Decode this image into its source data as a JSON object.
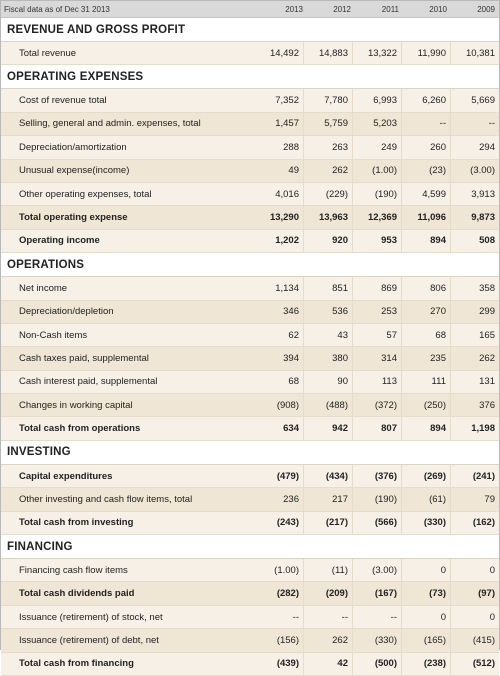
{
  "header": {
    "title": "Fiscal data as of Dec 31 2013",
    "years": [
      "2013",
      "2012",
      "2011",
      "2010",
      "2009"
    ]
  },
  "rows": [
    {
      "type": "section",
      "label": "REVENUE AND GROSS PROFIT"
    },
    {
      "type": "data",
      "label": "Total revenue",
      "values": [
        "14,492",
        "14,883",
        "13,322",
        "11,990",
        "10,381"
      ]
    },
    {
      "type": "section",
      "label": "OPERATING EXPENSES"
    },
    {
      "type": "data",
      "label": "Cost of revenue total",
      "values": [
        "7,352",
        "7,780",
        "6,993",
        "6,260",
        "5,669"
      ]
    },
    {
      "type": "data",
      "label": "Selling, general and admin. expenses, total",
      "values": [
        "1,457",
        "5,759",
        "5,203",
        "--",
        "--"
      ]
    },
    {
      "type": "data",
      "label": "Depreciation/amortization",
      "values": [
        "288",
        "263",
        "249",
        "260",
        "294"
      ]
    },
    {
      "type": "data",
      "label": "Unusual expense(income)",
      "values": [
        "49",
        "262",
        "(1.00)",
        "(23)",
        "(3.00)"
      ]
    },
    {
      "type": "data",
      "label": "Other operating expenses, total",
      "values": [
        "4,016",
        "(229)",
        "(190)",
        "4,599",
        "3,913"
      ]
    },
    {
      "type": "data",
      "bold": true,
      "label": "Total operating expense",
      "values": [
        "13,290",
        "13,963",
        "12,369",
        "11,096",
        "9,873"
      ]
    },
    {
      "type": "data",
      "bold": true,
      "label": "Operating income",
      "values": [
        "1,202",
        "920",
        "953",
        "894",
        "508"
      ]
    },
    {
      "type": "section",
      "label": "OPERATIONS"
    },
    {
      "type": "data",
      "label": "Net income",
      "values": [
        "1,134",
        "851",
        "869",
        "806",
        "358"
      ]
    },
    {
      "type": "data",
      "label": "Depreciation/depletion",
      "values": [
        "346",
        "536",
        "253",
        "270",
        "299"
      ]
    },
    {
      "type": "data",
      "label": "Non-Cash items",
      "values": [
        "62",
        "43",
        "57",
        "68",
        "165"
      ]
    },
    {
      "type": "data",
      "label": "Cash taxes paid, supplemental",
      "values": [
        "394",
        "380",
        "314",
        "235",
        "262"
      ]
    },
    {
      "type": "data",
      "label": "Cash interest paid, supplemental",
      "values": [
        "68",
        "90",
        "113",
        "111",
        "131"
      ]
    },
    {
      "type": "data",
      "label": "Changes in working capital",
      "values": [
        "(908)",
        "(488)",
        "(372)",
        "(250)",
        "376"
      ]
    },
    {
      "type": "data",
      "bold": true,
      "label": "Total cash from operations",
      "values": [
        "634",
        "942",
        "807",
        "894",
        "1,198"
      ]
    },
    {
      "type": "section",
      "label": "INVESTING"
    },
    {
      "type": "data",
      "bold": true,
      "label": "Capital expenditures",
      "values": [
        "(479)",
        "(434)",
        "(376)",
        "(269)",
        "(241)"
      ]
    },
    {
      "type": "data",
      "label": "Other investing and cash flow items, total",
      "values": [
        "236",
        "217",
        "(190)",
        "(61)",
        "79"
      ]
    },
    {
      "type": "data",
      "bold": true,
      "label": "Total cash from investing",
      "values": [
        "(243)",
        "(217)",
        "(566)",
        "(330)",
        "(162)"
      ]
    },
    {
      "type": "section",
      "label": "FINANCING"
    },
    {
      "type": "data",
      "label": "Financing cash flow items",
      "values": [
        "(1.00)",
        "(11)",
        "(3.00)",
        "0",
        "0"
      ]
    },
    {
      "type": "data",
      "bold": true,
      "label": "Total cash dividends paid",
      "values": [
        "(282)",
        "(209)",
        "(167)",
        "(73)",
        "(97)"
      ]
    },
    {
      "type": "data",
      "label": "Issuance (retirement) of stock, net",
      "values": [
        "--",
        "--",
        "--",
        "0",
        "0"
      ]
    },
    {
      "type": "data",
      "label": "Issuance (retirement) of debt, net",
      "values": [
        "(156)",
        "262",
        "(330)",
        "(165)",
        "(415)"
      ]
    },
    {
      "type": "data",
      "bold": true,
      "label": "Total cash from financing",
      "values": [
        "(439)",
        "42",
        "(500)",
        "(238)",
        "(512)"
      ]
    }
  ]
}
